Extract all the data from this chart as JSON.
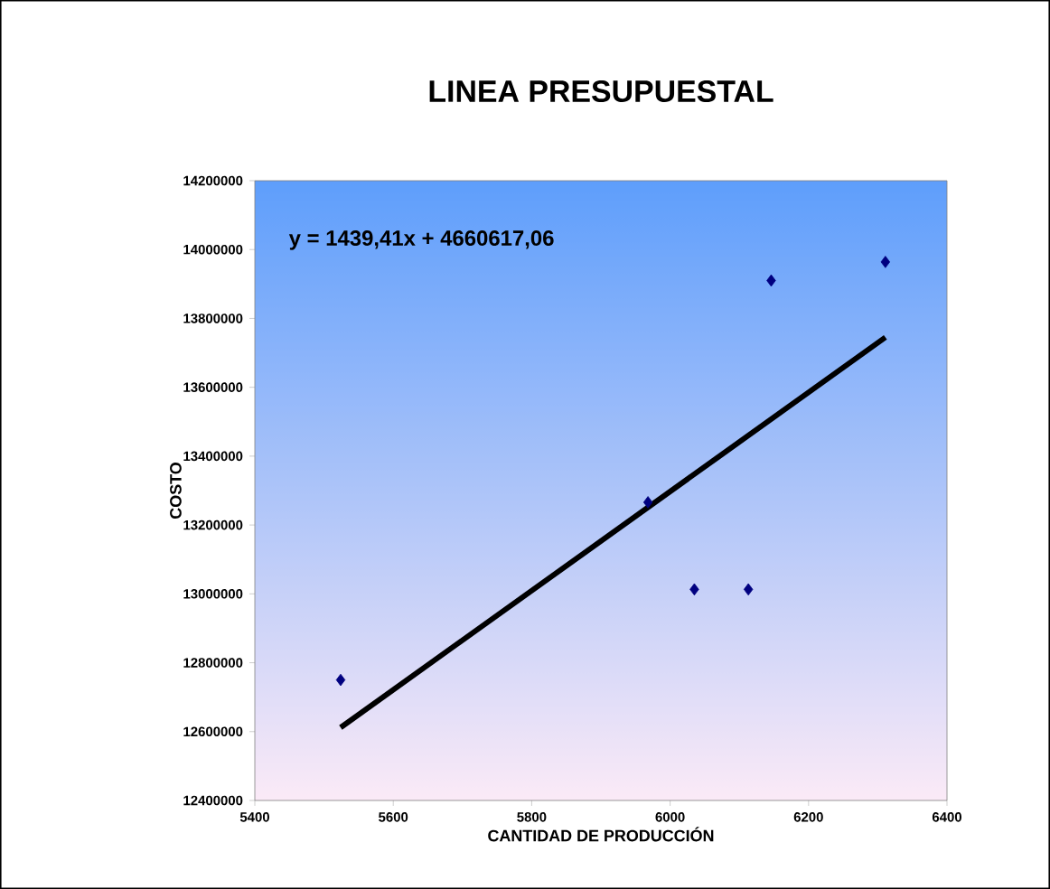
{
  "chart_data": {
    "type": "scatter",
    "title": "LINEA PRESUPUESTAL",
    "xlabel": "CANTIDAD DE PRODUCCIÓN",
    "ylabel": "COSTO",
    "annotations": [
      "y = 1439,41x + 4660617,06"
    ],
    "series": [
      {
        "color": "#000080",
        "marker": "diamond",
        "x": [
          5524,
          5968,
          6035,
          6113,
          6146,
          6311
        ],
        "values": [
          12750000,
          13266000,
          13013000,
          13013000,
          13910000,
          13964000
        ]
      },
      {
        "type": "line",
        "color": "#000000",
        "marker": "none",
        "line_style": "solid",
        "x": [
          5524,
          6311
        ],
        "values": [
          12612000,
          13745000
        ]
      }
    ],
    "xlim": [
      5400,
      6400
    ],
    "xticks": [
      5400,
      5600,
      5800,
      6000,
      6200,
      6400
    ],
    "ylim": [
      12400000,
      14200000
    ],
    "yticks": [
      12400000,
      12600000,
      12800000,
      13000000,
      13200000,
      13400000,
      13600000,
      13800000,
      14000000,
      14200000
    ],
    "grid": false
  }
}
